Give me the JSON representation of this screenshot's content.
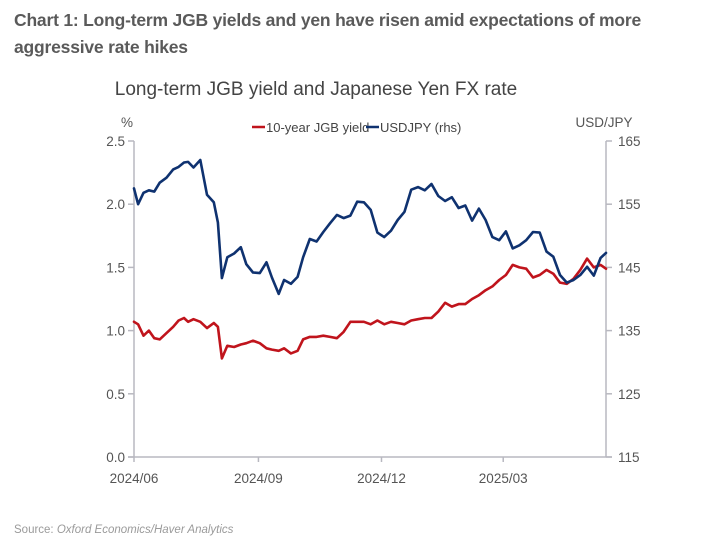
{
  "figure": {
    "title": "Chart 1: Long-term JGB yields and yen have risen amid expectations of more aggressive rate hikes",
    "source_label": "Source: ",
    "source_text": "Oxford Economics/Haver Analytics"
  },
  "chart_data": {
    "type": "line",
    "title": "Long-term JGB yield and Japanese Yen FX rate",
    "xlabel": "",
    "ylabel_left": "%",
    "ylabel_right": "USD/JPY",
    "x_tick_labels": [
      "2024/06",
      "2024/09",
      "2024/12",
      "2025/03"
    ],
    "x_range": [
      "2024-06-01",
      "2025-05-16"
    ],
    "ylim_left": [
      0.0,
      2.5
    ],
    "ylim_right": [
      115,
      165
    ],
    "y_ticks_left": [
      "0.0",
      "0.5",
      "1.0",
      "1.5",
      "2.0",
      "2.5"
    ],
    "y_ticks_right": [
      "115",
      "125",
      "135",
      "145",
      "155",
      "165"
    ],
    "grid": false,
    "legend_position": "top-center",
    "x": [
      "2024-06-01",
      "2024-06-04",
      "2024-06-08",
      "2024-06-12",
      "2024-06-16",
      "2024-06-20",
      "2024-06-25",
      "2024-06-30",
      "2024-07-04",
      "2024-07-08",
      "2024-07-11",
      "2024-07-15",
      "2024-07-20",
      "2024-07-25",
      "2024-07-30",
      "2024-08-02",
      "2024-08-05",
      "2024-08-09",
      "2024-08-14",
      "2024-08-19",
      "2024-08-23",
      "2024-08-28",
      "2024-09-02",
      "2024-09-07",
      "2024-09-11",
      "2024-09-16",
      "2024-09-20",
      "2024-09-25",
      "2024-09-30",
      "2024-10-04",
      "2024-10-09",
      "2024-10-14",
      "2024-10-19",
      "2024-10-24",
      "2024-10-29",
      "2024-11-03",
      "2024-11-08",
      "2024-11-13",
      "2024-11-18",
      "2024-11-23",
      "2024-11-28",
      "2024-12-03",
      "2024-12-08",
      "2024-12-13",
      "2024-12-18",
      "2024-12-23",
      "2024-12-28",
      "2025-01-02",
      "2025-01-07",
      "2025-01-12",
      "2025-01-17",
      "2025-01-22",
      "2025-01-27",
      "2025-02-01",
      "2025-02-06",
      "2025-02-11",
      "2025-02-16",
      "2025-02-21",
      "2025-02-26",
      "2025-03-03",
      "2025-03-08",
      "2025-03-13",
      "2025-03-18",
      "2025-03-23",
      "2025-03-28",
      "2025-04-02",
      "2025-04-07",
      "2025-04-12",
      "2025-04-17",
      "2025-04-22",
      "2025-04-27",
      "2025-05-02",
      "2025-05-07",
      "2025-05-12",
      "2025-05-16"
    ],
    "series": [
      {
        "name": "10-year JGB yield",
        "axis": "left",
        "color": "#c0141c",
        "values": [
          1.07,
          1.05,
          0.96,
          1.0,
          0.94,
          0.93,
          0.98,
          1.03,
          1.08,
          1.1,
          1.07,
          1.09,
          1.07,
          1.02,
          1.06,
          1.03,
          0.78,
          0.88,
          0.87,
          0.89,
          0.9,
          0.92,
          0.9,
          0.86,
          0.85,
          0.84,
          0.86,
          0.82,
          0.84,
          0.93,
          0.95,
          0.95,
          0.96,
          0.95,
          0.94,
          0.99,
          1.07,
          1.07,
          1.07,
          1.05,
          1.08,
          1.05,
          1.07,
          1.06,
          1.05,
          1.08,
          1.09,
          1.1,
          1.1,
          1.15,
          1.22,
          1.19,
          1.21,
          1.21,
          1.25,
          1.28,
          1.32,
          1.35,
          1.4,
          1.44,
          1.52,
          1.5,
          1.49,
          1.42,
          1.44,
          1.48,
          1.45,
          1.38,
          1.37,
          1.41,
          1.48,
          1.57,
          1.5,
          1.52,
          1.49
        ]
      },
      {
        "name": "USDJPY (rhs)",
        "axis": "right",
        "color": "#0f3270",
        "values": [
          157.5,
          155.0,
          156.8,
          157.2,
          157.0,
          158.4,
          159.2,
          160.5,
          160.9,
          161.6,
          161.7,
          160.8,
          162.0,
          156.5,
          155.3,
          152.1,
          143.3,
          146.6,
          147.2,
          148.2,
          145.5,
          144.2,
          144.1,
          145.8,
          143.4,
          140.8,
          143.0,
          142.4,
          143.5,
          146.6,
          149.5,
          149.1,
          150.6,
          152.0,
          153.3,
          152.8,
          153.2,
          155.4,
          155.3,
          154.1,
          150.5,
          149.8,
          150.8,
          152.5,
          153.8,
          157.3,
          157.7,
          157.2,
          158.2,
          156.3,
          155.5,
          156.1,
          154.4,
          154.8,
          152.4,
          154.3,
          152.5,
          149.8,
          149.3,
          150.7,
          148.0,
          148.5,
          149.3,
          150.6,
          150.5,
          147.5,
          146.7,
          143.8,
          142.6,
          143.0,
          143.8,
          145.1,
          143.7,
          146.5,
          147.3
        ]
      }
    ]
  }
}
